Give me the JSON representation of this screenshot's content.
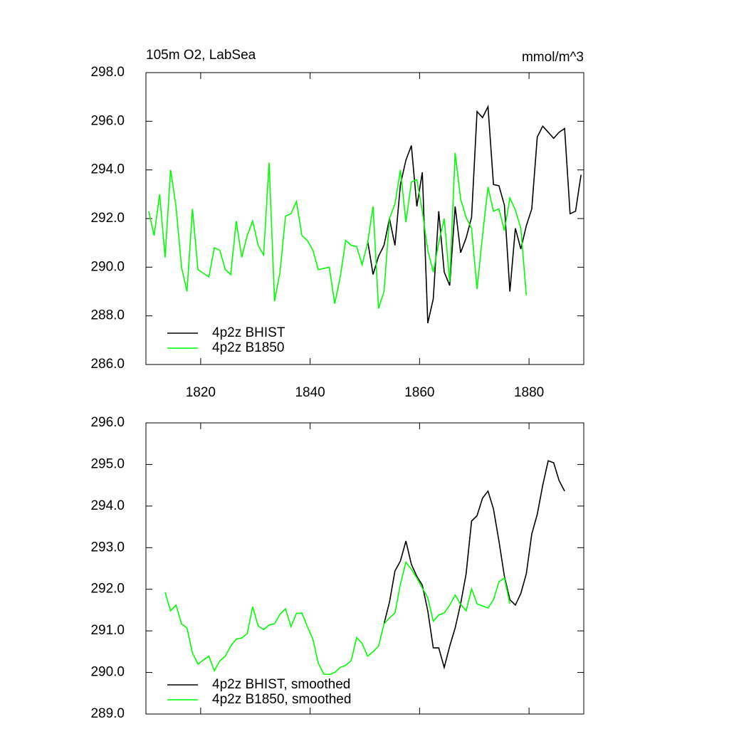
{
  "chart_data": [
    {
      "type": "line",
      "title": "105m O2, LabSea",
      "units": "mmol/m^3",
      "xlim": [
        1810,
        1890
      ],
      "xticks": [
        1820,
        1840,
        1860,
        1880
      ],
      "ylim": [
        286,
        298
      ],
      "yticks": [
        {
          "value": 286,
          "label": "286.0"
        },
        {
          "value": 288,
          "label": "288.0"
        },
        {
          "value": 290,
          "label": "290.0"
        },
        {
          "value": 292,
          "label": "292.0"
        },
        {
          "value": 294,
          "label": "294.0"
        },
        {
          "value": 296,
          "label": "296.0"
        },
        {
          "value": 298,
          "label": "298.0"
        }
      ],
      "series": [
        {
          "name": "4p2z BHIST",
          "color": "#000000",
          "x": [
            1850.5,
            1851.5,
            1852.5,
            1853.5,
            1854.5,
            1855.5,
            1856.5,
            1857.5,
            1858.5,
            1859.5,
            1860.5,
            1861.5,
            1862.5,
            1863.5,
            1864.5,
            1865.5,
            1866.5,
            1867.5,
            1868.5,
            1869.5,
            1870.5,
            1871.5,
            1872.5,
            1873.5,
            1874.5,
            1875.5,
            1876.5,
            1877.5,
            1878.5,
            1879.5,
            1880.5,
            1881.5,
            1882.5,
            1883.5,
            1884.5,
            1885.5,
            1886.5,
            1887.5,
            1888.5,
            1889.5
          ],
          "values": [
            291.1,
            289.7,
            290.45,
            290.9,
            292.0,
            290.9,
            293.4,
            294.4,
            295.0,
            292.5,
            293.9,
            287.7,
            288.7,
            292.3,
            289.8,
            289.25,
            292.5,
            290.6,
            291.2,
            292.05,
            296.4,
            296.15,
            296.6,
            293.4,
            293.35,
            292.55,
            289.0,
            291.6,
            290.75,
            291.7,
            292.4,
            295.35,
            295.8,
            295.55,
            295.3,
            295.55,
            295.7,
            292.2,
            292.3,
            293.8
          ]
        },
        {
          "name": "4p2z B1850",
          "color": "#00ff00",
          "x": [
            1810.5,
            1811.5,
            1812.5,
            1813.5,
            1814.5,
            1815.5,
            1816.5,
            1817.5,
            1818.5,
            1819.5,
            1820.5,
            1821.5,
            1822.5,
            1823.5,
            1824.5,
            1825.5,
            1826.5,
            1827.5,
            1828.5,
            1829.5,
            1830.5,
            1831.5,
            1832.5,
            1833.5,
            1834.5,
            1835.5,
            1836.5,
            1837.5,
            1838.5,
            1839.5,
            1840.5,
            1841.5,
            1842.5,
            1843.5,
            1844.5,
            1845.5,
            1846.5,
            1847.5,
            1848.5,
            1849.5,
            1850.5,
            1851.5,
            1852.5,
            1853.5,
            1854.5,
            1855.5,
            1856.5,
            1857.5,
            1858.5,
            1859.5,
            1860.5,
            1861.5,
            1862.5,
            1863.5,
            1864.5,
            1865.5,
            1866.5,
            1867.5,
            1868.5,
            1869.5,
            1870.5,
            1871.5,
            1872.5,
            1873.5,
            1874.5,
            1875.5,
            1876.5,
            1877.5,
            1878.5,
            1879.5
          ],
          "values": [
            292.3,
            291.3,
            293.0,
            290.4,
            294.0,
            292.5,
            290.0,
            289.0,
            292.4,
            289.9,
            289.75,
            289.6,
            290.8,
            290.7,
            289.9,
            289.7,
            291.9,
            290.4,
            291.3,
            291.9,
            290.9,
            290.5,
            294.3,
            288.6,
            289.8,
            292.1,
            292.2,
            292.7,
            291.3,
            291.1,
            290.7,
            289.9,
            289.95,
            290.0,
            288.5,
            289.6,
            291.1,
            290.9,
            290.85,
            290.1,
            291.0,
            292.5,
            288.3,
            289.0,
            292.0,
            292.6,
            294.0,
            291.85,
            293.5,
            293.6,
            292.3,
            290.7,
            289.8,
            291.0,
            292.0,
            289.4,
            294.7,
            292.8,
            292.05,
            291.6,
            289.1,
            291.3,
            293.3,
            292.3,
            292.4,
            291.5,
            292.85,
            292.35,
            291.6,
            288.85
          ]
        }
      ]
    },
    {
      "type": "line",
      "xlim": [
        1810,
        1890
      ],
      "xticks": [
        1820,
        1840,
        1860,
        1880
      ],
      "ylim": [
        289,
        296
      ],
      "yticks": [
        {
          "value": 289,
          "label": "289.0"
        },
        {
          "value": 290,
          "label": "290.0"
        },
        {
          "value": 291,
          "label": "291.0"
        },
        {
          "value": 292,
          "label": "292.0"
        },
        {
          "value": 293,
          "label": "293.0"
        },
        {
          "value": 294,
          "label": "294.0"
        },
        {
          "value": 295,
          "label": "295.0"
        },
        {
          "value": 296,
          "label": "296.0"
        }
      ],
      "series": [
        {
          "name": "4p2z BHIST, smoothed",
          "color": "#000000",
          "x": [
            1853.5,
            1854.5,
            1855.5,
            1856.5,
            1857.5,
            1858.5,
            1859.5,
            1860.5,
            1861.5,
            1862.5,
            1863.5,
            1864.5,
            1865.5,
            1866.5,
            1867.5,
            1868.5,
            1869.5,
            1870.5,
            1871.5,
            1872.5,
            1873.5,
            1874.5,
            1875.5,
            1876.5,
            1877.5,
            1878.5,
            1879.5,
            1880.5,
            1881.5,
            1882.5,
            1883.5,
            1884.5,
            1885.5,
            1886.5
          ],
          "values": [
            291.17,
            291.69,
            292.44,
            292.68,
            293.16,
            292.6,
            292.31,
            292.1,
            291.48,
            290.59,
            290.59,
            290.12,
            290.63,
            291.07,
            291.65,
            292.37,
            293.64,
            293.77,
            294.19,
            294.36,
            293.93,
            293.16,
            292.31,
            291.75,
            291.62,
            291.9,
            292.37,
            293.33,
            293.8,
            294.5,
            295.09,
            295.04,
            294.61,
            294.36
          ]
        },
        {
          "name": "4p2z B1850, smoothed",
          "color": "#00ff00",
          "x": [
            1813.5,
            1814.5,
            1815.5,
            1816.5,
            1817.5,
            1818.5,
            1819.5,
            1820.5,
            1821.5,
            1822.5,
            1823.5,
            1824.5,
            1825.5,
            1826.5,
            1827.5,
            1828.5,
            1829.5,
            1830.5,
            1831.5,
            1832.5,
            1833.5,
            1834.5,
            1835.5,
            1836.5,
            1837.5,
            1838.5,
            1839.5,
            1840.5,
            1841.5,
            1842.5,
            1843.5,
            1844.5,
            1845.5,
            1846.5,
            1847.5,
            1848.5,
            1849.5,
            1850.5,
            1851.5,
            1852.5,
            1853.5,
            1854.5,
            1855.5,
            1856.5,
            1857.5,
            1858.5,
            1859.5,
            1860.5,
            1861.5,
            1862.5,
            1863.5,
            1864.5,
            1865.5,
            1866.5,
            1867.5,
            1868.5,
            1869.5,
            1870.5,
            1871.5,
            1872.5,
            1873.5,
            1874.5,
            1875.5,
            1876.5
          ],
          "values": [
            291.93,
            291.48,
            291.62,
            291.17,
            291.07,
            290.47,
            290.2,
            290.3,
            290.39,
            290.04,
            290.28,
            290.39,
            290.64,
            290.8,
            290.83,
            290.93,
            291.58,
            291.12,
            291.03,
            291.14,
            291.17,
            291.4,
            291.53,
            291.1,
            291.42,
            291.43,
            291.1,
            290.8,
            290.22,
            289.96,
            289.95,
            290.0,
            290.12,
            290.17,
            290.28,
            290.84,
            290.7,
            290.39,
            290.5,
            290.63,
            291.17,
            291.31,
            291.43,
            292.13,
            292.65,
            292.48,
            292.27,
            292.03,
            291.8,
            291.23,
            291.38,
            291.43,
            291.62,
            291.86,
            291.64,
            291.48,
            292.01,
            291.65,
            291.6,
            291.55,
            291.75,
            292.18,
            292.27,
            291.65
          ]
        }
      ]
    }
  ]
}
